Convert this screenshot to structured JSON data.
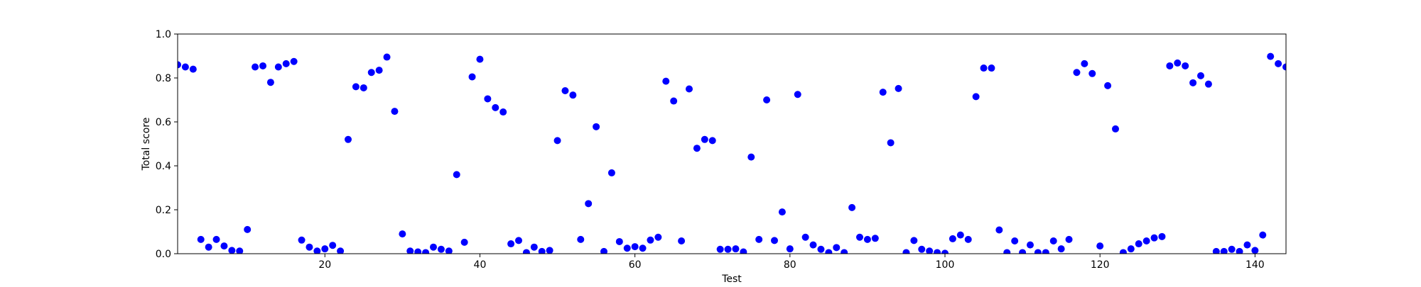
{
  "chart_data": {
    "type": "scatter",
    "title": "",
    "xlabel": "Test",
    "ylabel": "Total score",
    "xlim": [
      1,
      144
    ],
    "ylim": [
      0,
      1.0
    ],
    "x_ticks": [
      20,
      40,
      60,
      80,
      100,
      120,
      140
    ],
    "y_ticks": [
      0.0,
      0.2,
      0.4,
      0.6,
      0.8,
      1.0
    ],
    "grid": false,
    "legend": "none",
    "marker_color": "#0000ff",
    "x": [
      1,
      2,
      3,
      4,
      5,
      6,
      7,
      8,
      9,
      10,
      11,
      12,
      13,
      14,
      15,
      16,
      17,
      18,
      19,
      20,
      21,
      22,
      23,
      24,
      25,
      26,
      27,
      28,
      29,
      30,
      31,
      32,
      33,
      34,
      35,
      36,
      37,
      38,
      39,
      40,
      41,
      42,
      43,
      44,
      45,
      46,
      47,
      48,
      49,
      50,
      51,
      52,
      53,
      54,
      55,
      56,
      57,
      58,
      59,
      60,
      61,
      62,
      63,
      64,
      65,
      66,
      67,
      68,
      69,
      70,
      71,
      72,
      73,
      74,
      75,
      76,
      77,
      78,
      79,
      80,
      81,
      82,
      83,
      84,
      85,
      86,
      87,
      88,
      89,
      90,
      91,
      92,
      93,
      94,
      95,
      96,
      97,
      98,
      99,
      100,
      101,
      102,
      103,
      104,
      105,
      106,
      107,
      108,
      109,
      110,
      111,
      112,
      113,
      114,
      115,
      116,
      117,
      118,
      119,
      120,
      121,
      122,
      123,
      124,
      125,
      126,
      127,
      128,
      129,
      130,
      131,
      132,
      133,
      134,
      135,
      136,
      137,
      138,
      139,
      140,
      141,
      142,
      143,
      144
    ],
    "y": [
      0.86,
      0.85,
      0.84,
      0.065,
      0.03,
      0.065,
      0.035,
      0.015,
      0.012,
      0.11,
      0.85,
      0.855,
      0.78,
      0.85,
      0.865,
      0.875,
      0.062,
      0.03,
      0.012,
      0.022,
      0.038,
      0.012,
      0.52,
      0.76,
      0.755,
      0.825,
      0.835,
      0.895,
      0.648,
      0.09,
      0.012,
      0.008,
      0.005,
      0.03,
      0.02,
      0.012,
      0.36,
      0.052,
      0.805,
      0.885,
      0.705,
      0.665,
      0.645,
      0.045,
      0.06,
      0.005,
      0.03,
      0.01,
      0.015,
      0.515,
      0.742,
      0.722,
      0.065,
      0.228,
      0.578,
      0.01,
      0.368,
      0.055,
      0.025,
      0.032,
      0.025,
      0.062,
      0.075,
      0.785,
      0.695,
      0.058,
      0.75,
      0.48,
      0.52,
      0.515,
      0.02,
      0.02,
      0.022,
      0.008,
      0.44,
      0.065,
      0.7,
      0.06,
      0.19,
      0.022,
      0.725,
      0.075,
      0.04,
      0.02,
      0.005,
      0.028,
      0.005,
      0.21,
      0.075,
      0.065,
      0.07,
      0.735,
      0.505,
      0.752,
      0.005,
      0.06,
      0.02,
      0.012,
      0.005,
      0.002,
      0.068,
      0.085,
      0.065,
      0.715,
      0.845,
      0.845,
      0.108,
      0.005,
      0.058,
      0.005,
      0.04,
      0.005,
      0.005,
      0.058,
      0.022,
      0.065,
      0.825,
      0.865,
      0.82,
      0.035,
      0.765,
      0.568,
      0.005,
      0.022,
      0.045,
      0.058,
      0.072,
      0.078,
      0.855,
      0.868,
      0.855,
      0.778,
      0.81,
      0.772,
      0.01,
      0.01,
      0.02,
      0.01,
      0.04,
      0.015,
      0.085,
      0.898,
      0.865,
      0.85
    ]
  }
}
